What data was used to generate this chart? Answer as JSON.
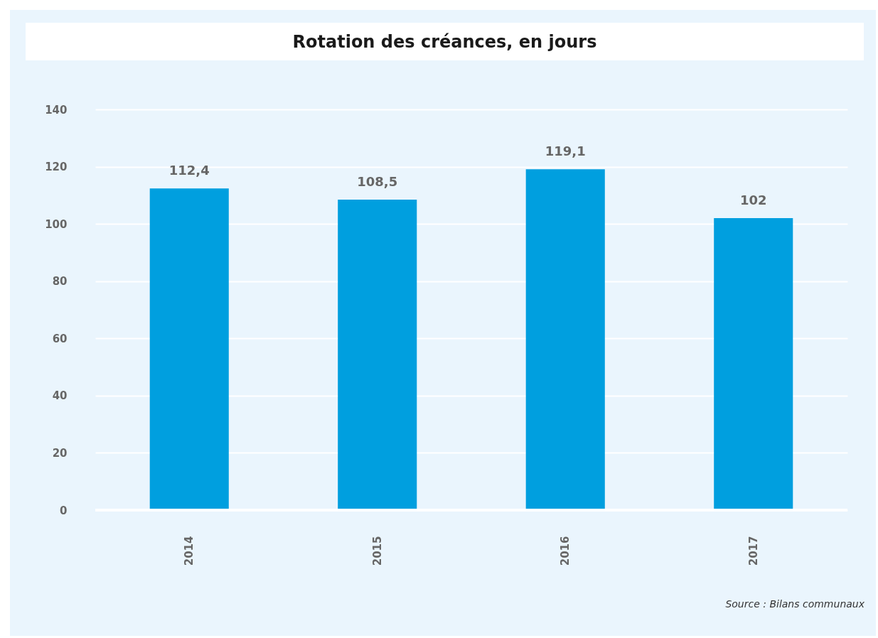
{
  "chart_data": {
    "type": "bar",
    "title": "Rotation des créances, en jours",
    "categories": [
      "2014",
      "2015",
      "2016",
      "2017"
    ],
    "values": [
      112.4,
      108.5,
      119.1,
      102
    ],
    "value_labels": [
      "112,4",
      "108,5",
      "119,1",
      "102"
    ],
    "color": "#009fdf",
    "ylim": [
      0,
      140
    ],
    "yticks": [
      0,
      20,
      40,
      60,
      80,
      100,
      120,
      140
    ],
    "grid": "y",
    "annotations": [
      "Source : Bilans communaux"
    ]
  }
}
